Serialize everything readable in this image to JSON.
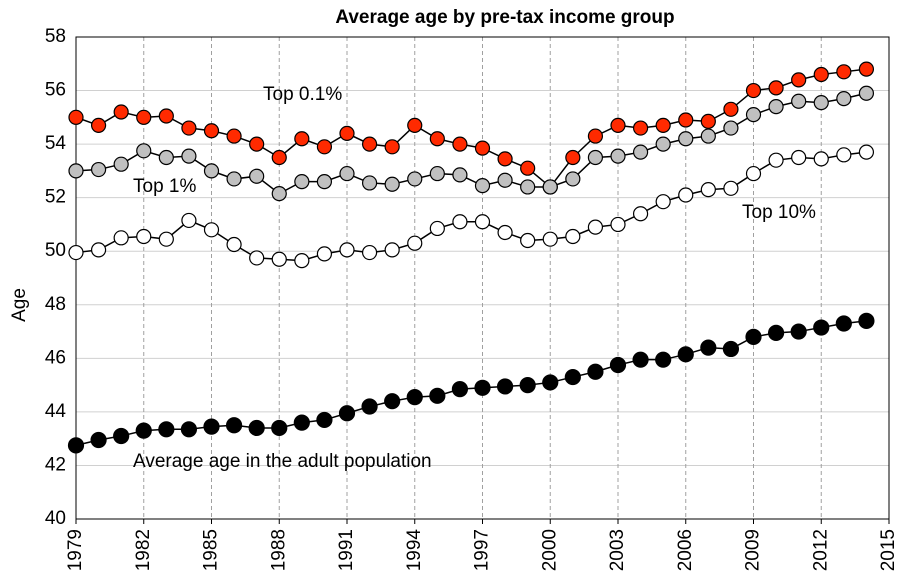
{
  "chart_data": {
    "type": "line",
    "title": "Average age by pre-tax income group",
    "y_label": "Age",
    "x": [
      1979,
      1980,
      1981,
      1982,
      1983,
      1984,
      1985,
      1986,
      1987,
      1988,
      1989,
      1990,
      1991,
      1992,
      1993,
      1994,
      1995,
      1996,
      1997,
      1998,
      1999,
      2000,
      2001,
      2002,
      2003,
      2004,
      2005,
      2006,
      2007,
      2008,
      2009,
      2010,
      2011,
      2012,
      2013,
      2014
    ],
    "xlim": [
      1979,
      2015
    ],
    "xticks": [
      1979,
      1982,
      1985,
      1988,
      1991,
      1994,
      1997,
      2000,
      2003,
      2006,
      2009,
      2012,
      2015
    ],
    "ylim": [
      40,
      58
    ],
    "yticks": [
      40,
      42,
      44,
      46,
      48,
      50,
      52,
      54,
      56,
      58
    ],
    "grid": true,
    "series": [
      {
        "name": "Top 0.1%",
        "color": "#ff2a00",
        "values": [
          55.0,
          54.7,
          55.2,
          55.0,
          55.05,
          54.6,
          54.5,
          54.3,
          54.0,
          53.5,
          54.2,
          53.9,
          54.4,
          54.0,
          53.9,
          54.7,
          54.2,
          54.0,
          53.85,
          53.45,
          53.1,
          52.4,
          53.5,
          54.3,
          54.7,
          54.6,
          54.7,
          54.9,
          54.85,
          55.3,
          56.0,
          56.1,
          56.4,
          56.6,
          56.7,
          56.8
        ]
      },
      {
        "name": "Top 1%",
        "color": "#c0c0c0",
        "values": [
          53.0,
          53.05,
          53.25,
          53.75,
          53.5,
          53.55,
          53.0,
          52.7,
          52.8,
          52.15,
          52.6,
          52.6,
          52.9,
          52.55,
          52.5,
          52.7,
          52.9,
          52.85,
          52.45,
          52.65,
          52.4,
          52.4,
          52.7,
          53.5,
          53.55,
          53.7,
          54.0,
          54.2,
          54.3,
          54.6,
          55.1,
          55.4,
          55.6,
          55.55,
          55.7,
          55.9
        ]
      },
      {
        "name": "Top 10%",
        "color": "#ffffff",
        "values": [
          49.95,
          50.05,
          50.5,
          50.55,
          50.45,
          51.15,
          50.8,
          50.25,
          49.75,
          49.7,
          49.65,
          49.9,
          50.05,
          49.95,
          50.05,
          50.3,
          50.85,
          51.1,
          51.1,
          50.7,
          50.4,
          50.45,
          50.55,
          50.9,
          51.0,
          51.4,
          51.85,
          52.1,
          52.3,
          52.35,
          52.9,
          53.4,
          53.5,
          53.45,
          53.6,
          53.7
        ]
      },
      {
        "name": "Average age in the adult population",
        "color": "#000000",
        "values": [
          42.75,
          42.95,
          43.1,
          43.3,
          43.35,
          43.35,
          43.45,
          43.5,
          43.4,
          43.4,
          43.6,
          43.7,
          43.95,
          44.2,
          44.4,
          44.55,
          44.6,
          44.85,
          44.9,
          44.95,
          45.0,
          45.1,
          45.3,
          45.5,
          45.75,
          45.95,
          45.95,
          46.15,
          46.4,
          46.35,
          46.8,
          46.95,
          47.0,
          47.15,
          47.3,
          47.4
        ]
      }
    ]
  }
}
